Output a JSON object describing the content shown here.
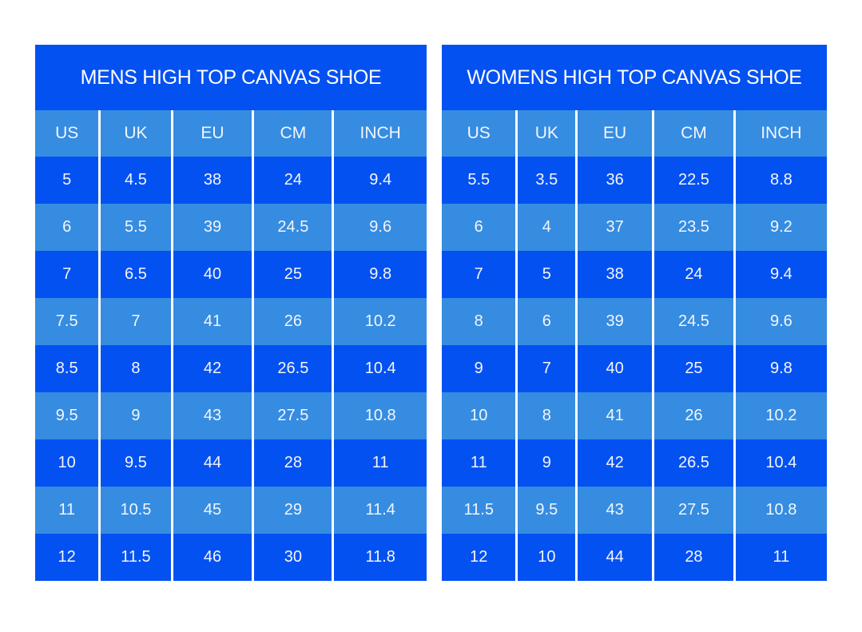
{
  "colors": {
    "background": "#FFFFFF",
    "dark_blue": "#0451F2",
    "light_blue": "#368CE1",
    "divider": "#FFFFFF",
    "text": "#FFFFFF"
  },
  "chart_data": [
    {
      "type": "table",
      "id": "mens",
      "title": "MENS HIGH TOP CANVAS SHOE",
      "columns": [
        "US",
        "UK",
        "EU",
        "CM",
        "INCH"
      ],
      "rows": [
        [
          "5",
          "4.5",
          "38",
          "24",
          "9.4"
        ],
        [
          "6",
          "5.5",
          "39",
          "24.5",
          "9.6"
        ],
        [
          "7",
          "6.5",
          "40",
          "25",
          "9.8"
        ],
        [
          "7.5",
          "7",
          "41",
          "26",
          "10.2"
        ],
        [
          "8.5",
          "8",
          "42",
          "26.5",
          "10.4"
        ],
        [
          "9.5",
          "9",
          "43",
          "27.5",
          "10.8"
        ],
        [
          "10",
          "9.5",
          "44",
          "28",
          "11"
        ],
        [
          "11",
          "10.5",
          "45",
          "29",
          "11.4"
        ],
        [
          "12",
          "11.5",
          "46",
          "30",
          "11.8"
        ]
      ]
    },
    {
      "type": "table",
      "id": "womens",
      "title": "WOMENS HIGH TOP CANVAS SHOE",
      "columns": [
        "US",
        "UK",
        "EU",
        "CM",
        "INCH"
      ],
      "rows": [
        [
          "5.5",
          "3.5",
          "36",
          "22.5",
          "8.8"
        ],
        [
          "6",
          "4",
          "37",
          "23.5",
          "9.2"
        ],
        [
          "7",
          "5",
          "38",
          "24",
          "9.4"
        ],
        [
          "8",
          "6",
          "39",
          "24.5",
          "9.6"
        ],
        [
          "9",
          "7",
          "40",
          "25",
          "9.8"
        ],
        [
          "10",
          "8",
          "41",
          "26",
          "10.2"
        ],
        [
          "11",
          "9",
          "42",
          "26.5",
          "10.4"
        ],
        [
          "11.5",
          "9.5",
          "43",
          "27.5",
          "10.8"
        ],
        [
          "12",
          "10",
          "44",
          "28",
          "11"
        ]
      ]
    }
  ]
}
